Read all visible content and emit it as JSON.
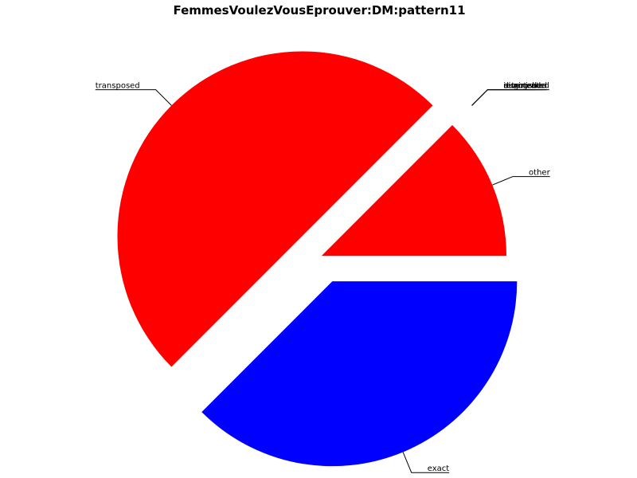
{
  "chart_data": {
    "type": "pie",
    "title": "FemmesVoulezVousEprouver:DM:pattern11",
    "start_angle_deg": 0,
    "direction": "counterclockwise",
    "slices": [
      {
        "label": "other",
        "value": 12.5,
        "color": "#ff0000",
        "exploded": false
      },
      {
        "label": "augmented",
        "value": 0,
        "color": "#ff0000",
        "exploded": true
      },
      {
        "label": "diminished",
        "value": 0,
        "color": "#ff0000",
        "exploded": true
      },
      {
        "label": "inverted",
        "value": 0,
        "color": "#ff0000",
        "exploded": true
      },
      {
        "label": "retrograde",
        "value": 0,
        "color": "#ff0000",
        "exploded": true
      },
      {
        "label": "transposed",
        "value": 50,
        "color": "#ff0000",
        "exploded": true
      },
      {
        "label": "exact",
        "value": 37.5,
        "color": "#0000ff",
        "exploded": true
      }
    ]
  }
}
